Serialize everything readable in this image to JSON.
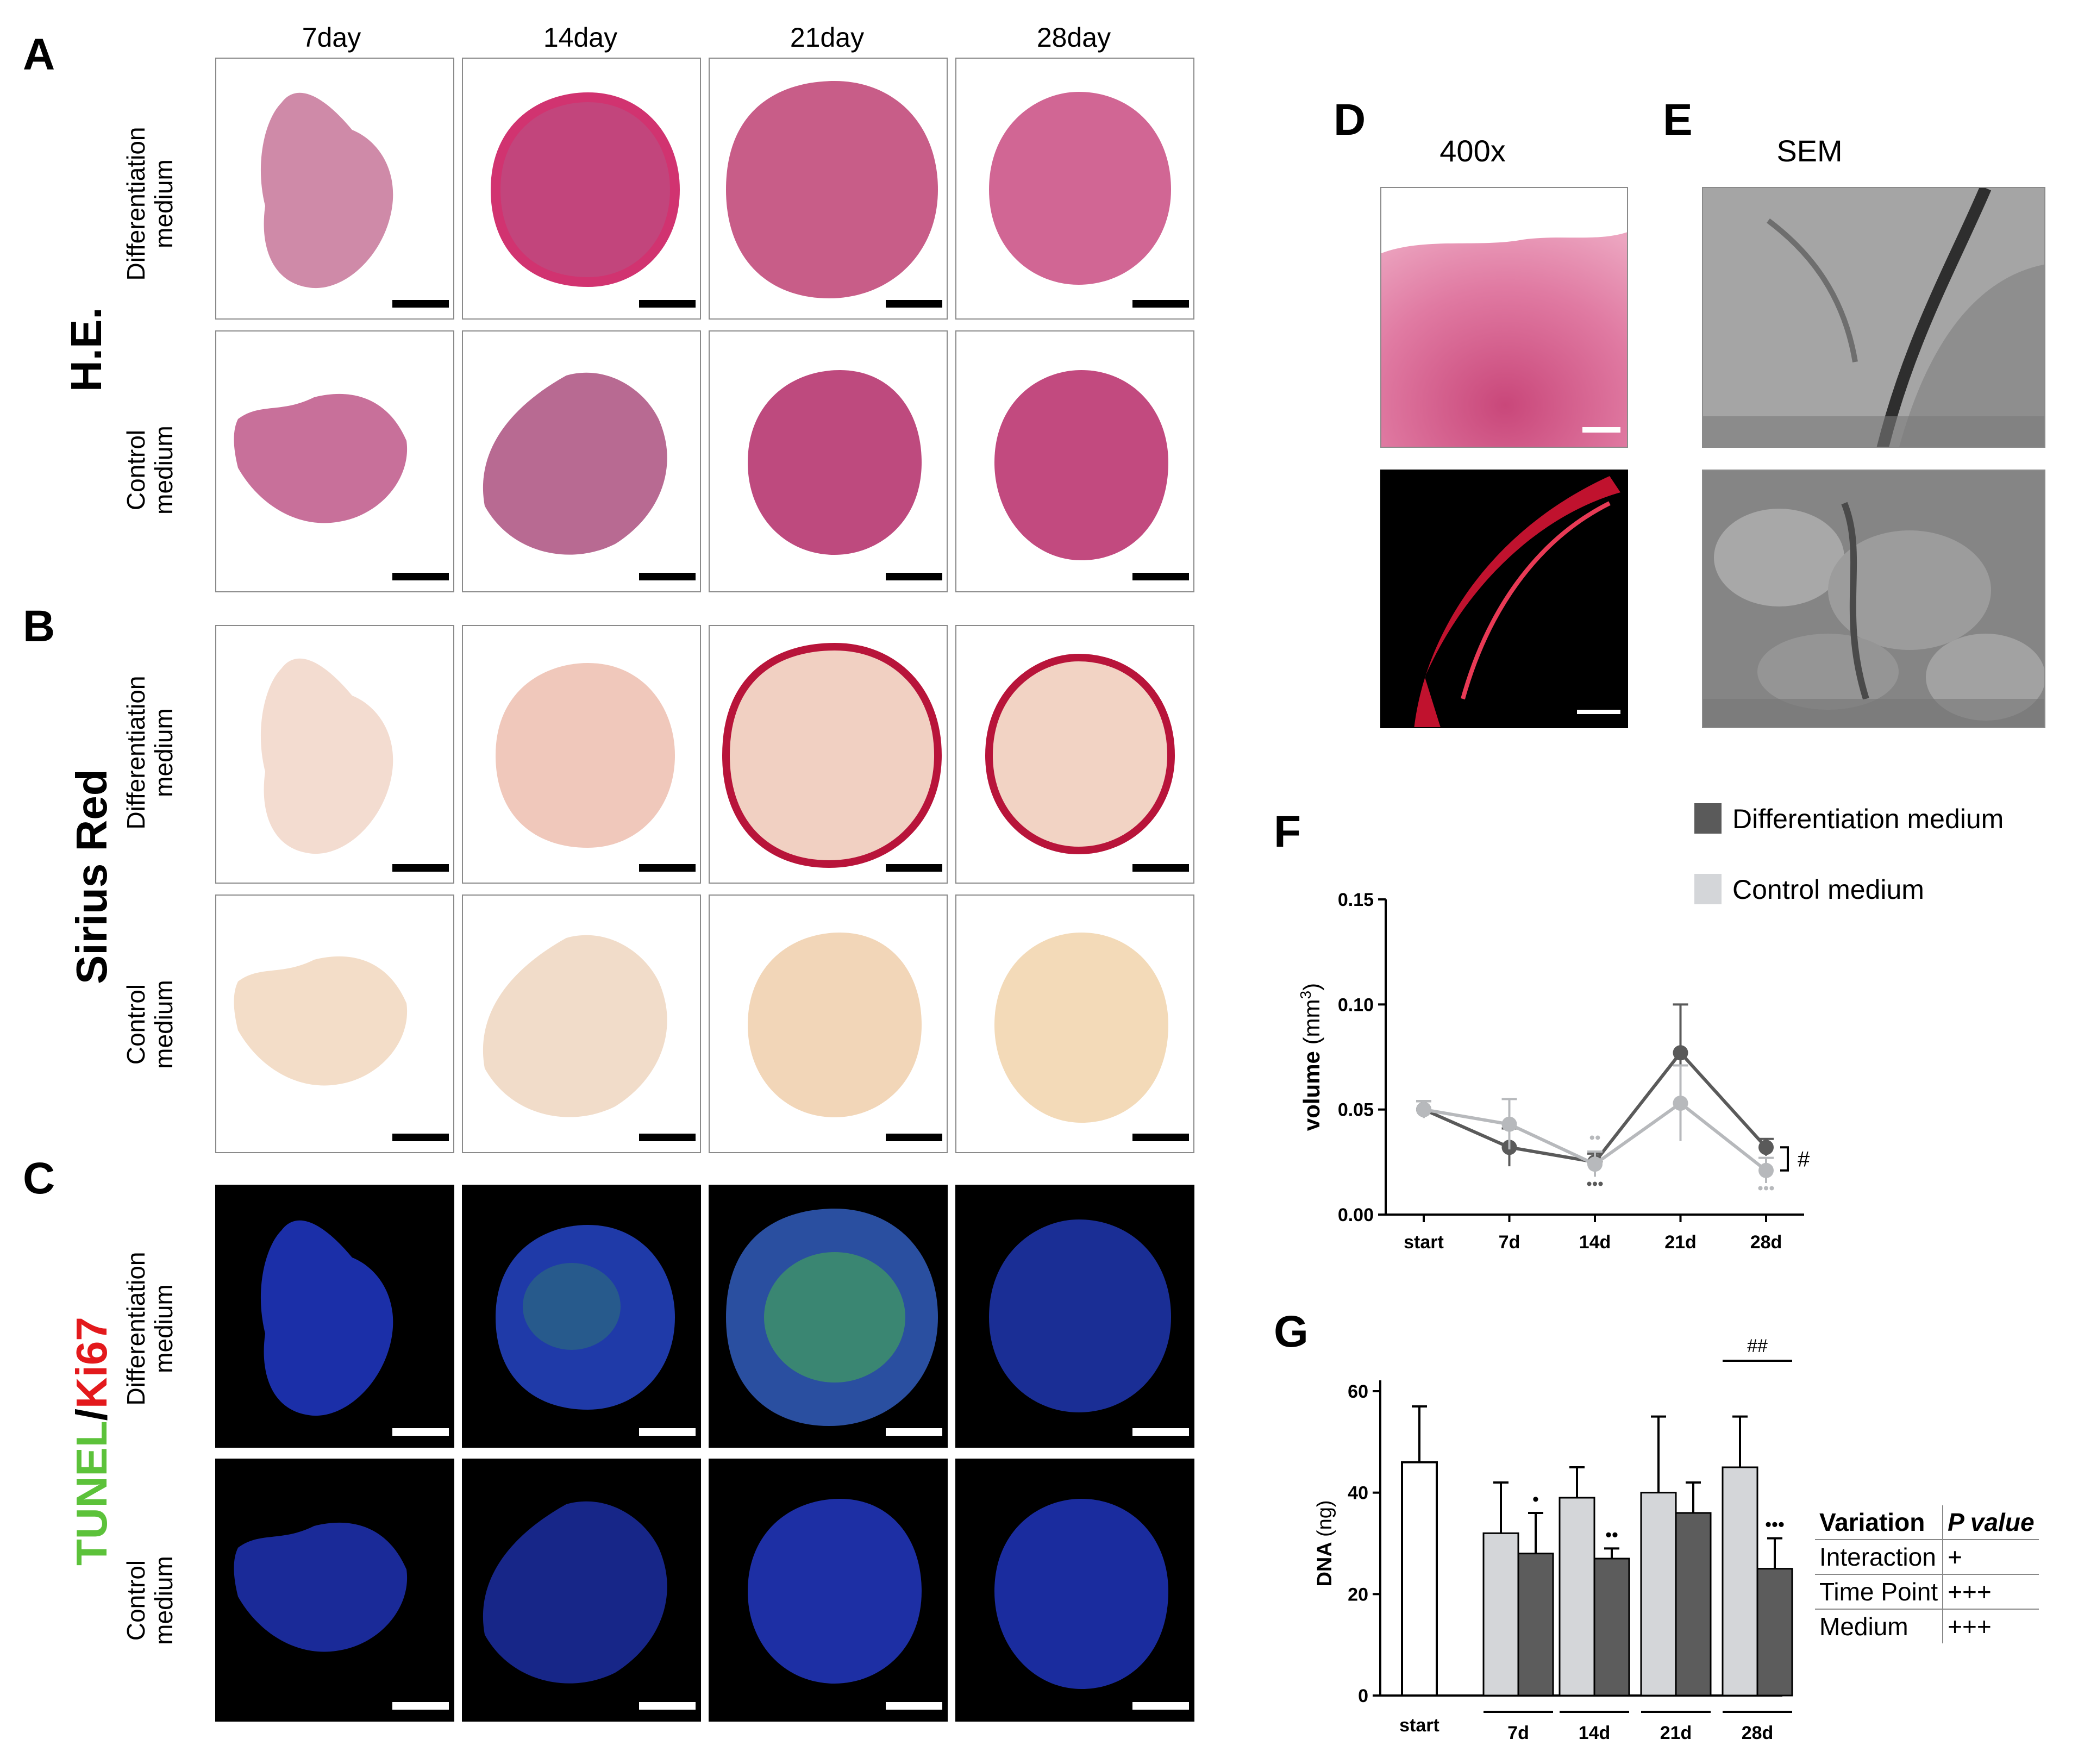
{
  "panels": {
    "A": "A",
    "B": "B",
    "C": "C",
    "D": "D",
    "E": "E",
    "F": "F",
    "G": "G"
  },
  "columns": [
    "7day",
    "14day",
    "21day",
    "28day"
  ],
  "rows": {
    "diff_l1": "Differentiation",
    "diff_l2": "medium",
    "ctrl_l1": "Control",
    "ctrl_l2": "medium"
  },
  "stains": {
    "he": "H.E.",
    "sirius": "Sirius Red",
    "tunel": "TUNEL",
    "slash": "/",
    "ki67": "Ki67"
  },
  "colors": {
    "tunel": "#5cc23a",
    "ki67": "#e3191c",
    "diff_series": "#5a5a5a",
    "ctrl_series": "#b7b9bc",
    "ctrl_bar": "#d4d6d9",
    "diff_bar": "#5c5c5c"
  },
  "panelD": {
    "title": "400x"
  },
  "panelE": {
    "title": "SEM"
  },
  "legend": {
    "diff": "Differentiation medium",
    "ctrl": "Control medium"
  },
  "chart_data": [
    {
      "type": "line",
      "panel": "F",
      "ylabel": "volume (mm",
      "ylabel_sup": "3",
      "ylabel_close": ")",
      "categories": [
        "start",
        "7d",
        "14d",
        "21d",
        "28d"
      ],
      "ylim": [
        0,
        0.15
      ],
      "yticks": [
        "0.00",
        "0.05",
        "0.10",
        "0.15"
      ],
      "series": [
        {
          "name": "Differentiation medium",
          "values": [
            0.05,
            0.032,
            0.025,
            0.077,
            0.032
          ],
          "errors": [
            0.004,
            0.009,
            0.004,
            0.023,
            0.004
          ]
        },
        {
          "name": "Control medium",
          "values": [
            0.05,
            0.043,
            0.024,
            0.053,
            0.021
          ],
          "errors": [
            0.004,
            0.012,
            0.006,
            0.018,
            0.006
          ]
        }
      ],
      "annotations": {
        "sig14_top": "••",
        "sig14_bot": "•••",
        "sig28_bot": "•••",
        "hash": "#"
      }
    },
    {
      "type": "bar",
      "panel": "G",
      "ylabel": "DNA",
      "ylabel_unit": "(ng)",
      "categories": [
        "start",
        "7d",
        "14d",
        "21d",
        "28d"
      ],
      "ylim": [
        0,
        60
      ],
      "yticks": [
        "0",
        "20",
        "40",
        "60"
      ],
      "start": {
        "value": 46,
        "error": 11
      },
      "series": [
        {
          "name": "Control medium",
          "values": [
            null,
            32,
            39,
            40,
            45
          ],
          "errors": [
            null,
            10,
            6,
            15,
            10
          ]
        },
        {
          "name": "Differentiation medium",
          "values": [
            null,
            28,
            27,
            36,
            25
          ],
          "errors": [
            null,
            8,
            2,
            6,
            6
          ]
        }
      ],
      "annotations": {
        "sig7": "•",
        "sig14": "••",
        "sig28": "•••",
        "hash28": "##"
      }
    }
  ],
  "ptable": {
    "header": [
      "Variation",
      "P value"
    ],
    "rows": [
      [
        "Interaction",
        "+"
      ],
      [
        "Time Point",
        "+++"
      ],
      [
        "Medium",
        "+++"
      ]
    ]
  }
}
